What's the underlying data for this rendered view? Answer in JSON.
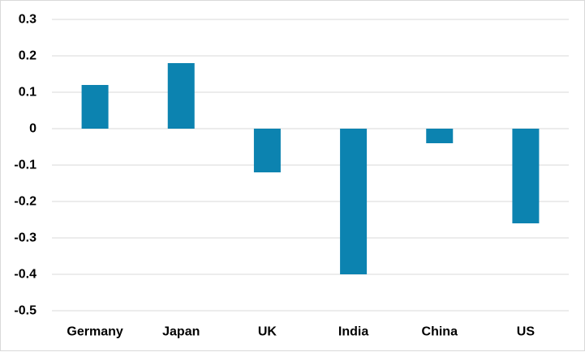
{
  "chart_data": {
    "type": "bar",
    "title": "",
    "xlabel": "",
    "ylabel": "",
    "categories": [
      "Germany",
      "Japan",
      "UK",
      "India",
      "China",
      "US"
    ],
    "values": [
      0.12,
      0.18,
      -0.12,
      -0.4,
      -0.04,
      -0.26
    ],
    "ylim": [
      -0.5,
      0.3
    ],
    "yticks": [
      0.3,
      0.2,
      0.1,
      0,
      -0.1,
      -0.2,
      -0.3,
      -0.4,
      -0.5
    ],
    "ytick_labels": [
      "0.3",
      "0.2",
      "0.1",
      "0",
      "-0.1",
      "-0.2",
      "-0.3",
      "-0.4",
      "-0.5"
    ],
    "grid": true,
    "legend": "none",
    "colors": {
      "bar": "#0c83b0",
      "grid": "#d9d9d9",
      "text": "#000000"
    }
  }
}
